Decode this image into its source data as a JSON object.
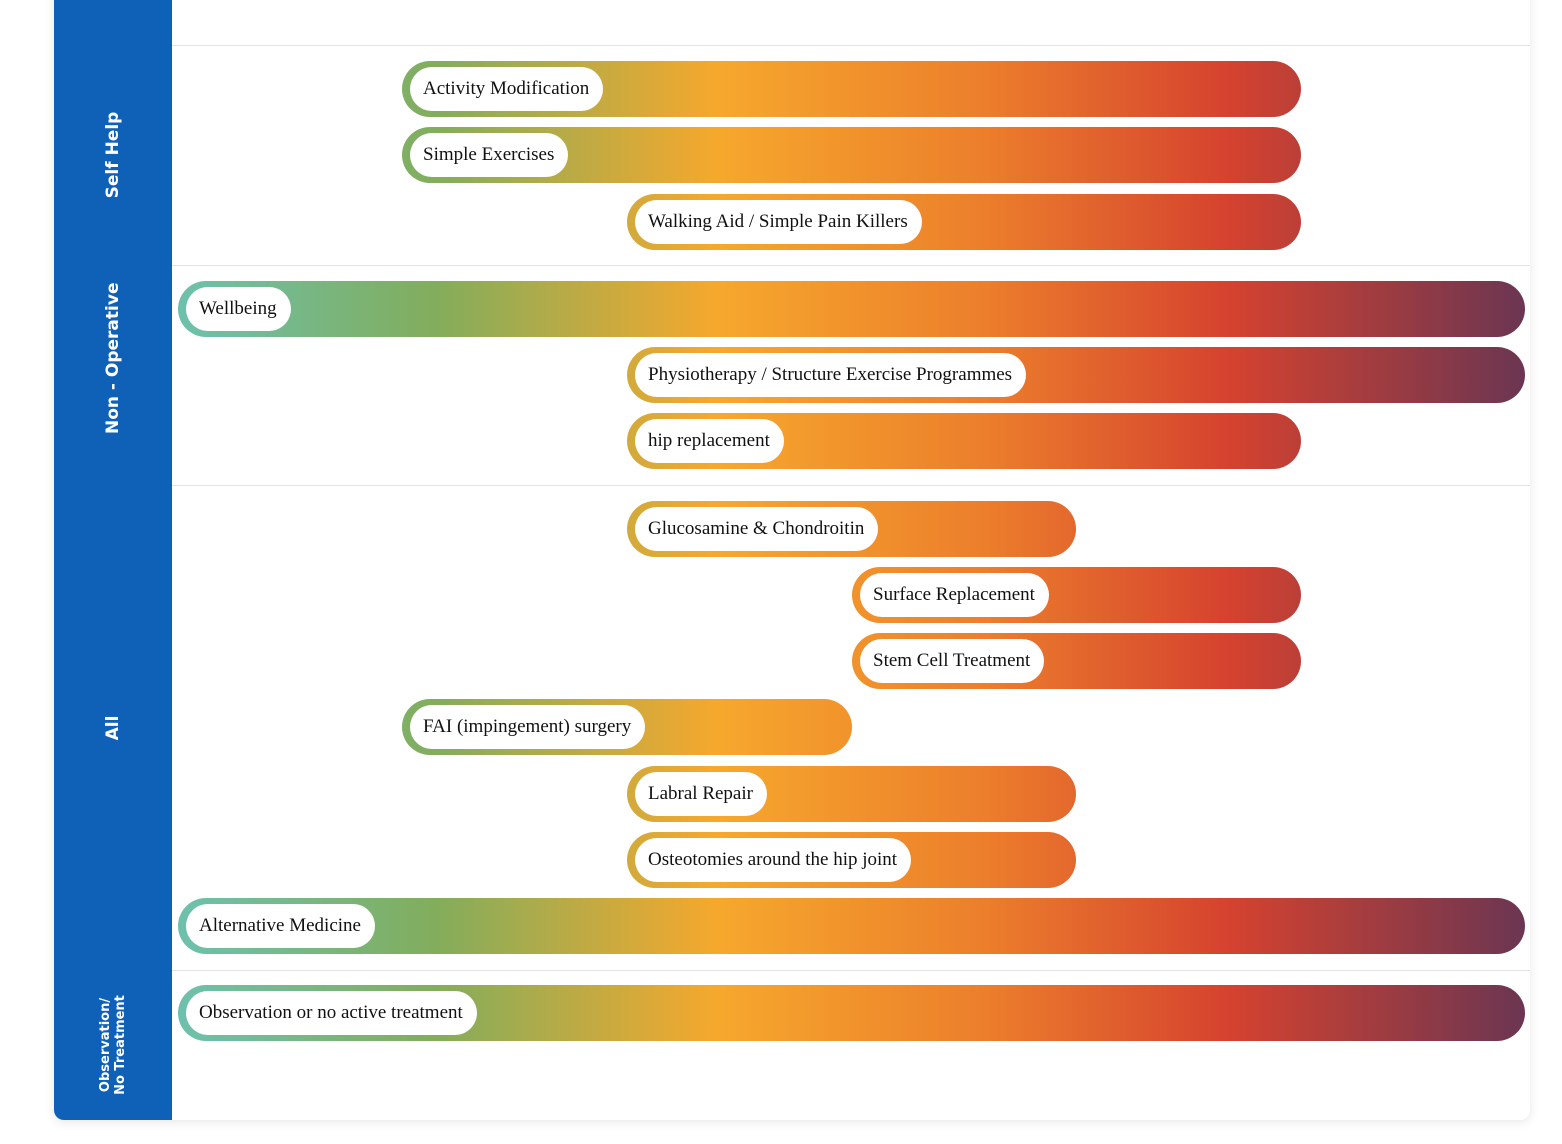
{
  "categories": [
    {
      "label": "Self Help"
    },
    {
      "label": "Non - Operative"
    },
    {
      "label": "All"
    },
    {
      "label": "Observation/\nNo Treatment"
    }
  ],
  "colors": {
    "sidebar": "#0f61b8",
    "teal": "#6dc1ad",
    "green": "#82ad5c",
    "amber": "#f6a82d",
    "orange": "#ec7e2c",
    "red": "#d5422f",
    "plum": "#6b3652"
  },
  "treatments": [
    {
      "label": "Activity Modification",
      "category": "Self Help",
      "range": [
        2,
        6
      ]
    },
    {
      "label": "Simple Exercises",
      "category": "Self Help",
      "range": [
        2,
        6
      ]
    },
    {
      "label": "Walking Aid / Simple Pain Killers",
      "category": "Self Help",
      "range": [
        3,
        6
      ]
    },
    {
      "label": "Wellbeing",
      "category": "Non - Operative",
      "range": [
        1,
        7
      ]
    },
    {
      "label": "Physiotherapy / Structure Exercise Programmes",
      "category": "Non - Operative",
      "range": [
        3,
        7
      ]
    },
    {
      "label": "hip replacement",
      "category": "Non - Operative",
      "range": [
        3,
        6
      ]
    },
    {
      "label": "Glucosamine & Chondroitin",
      "category": "All",
      "range": [
        3,
        5
      ]
    },
    {
      "label": "Surface Replacement",
      "category": "All",
      "range": [
        4,
        6
      ]
    },
    {
      "label": "Stem Cell Treatment",
      "category": "All",
      "range": [
        4,
        6
      ]
    },
    {
      "label": "FAI (impingement) surgery",
      "category": "All",
      "range": [
        2,
        4
      ]
    },
    {
      "label": "Labral Repair",
      "category": "All",
      "range": [
        3,
        5
      ]
    },
    {
      "label": "Osteotomies around the hip joint",
      "category": "All",
      "range": [
        3,
        5
      ]
    },
    {
      "label": "Alternative Medicine",
      "category": "All",
      "range": [
        1,
        7
      ]
    },
    {
      "label": "Observation or no active treatment",
      "category": "Observation/\nNo Treatment",
      "range": [
        1,
        7
      ]
    }
  ]
}
